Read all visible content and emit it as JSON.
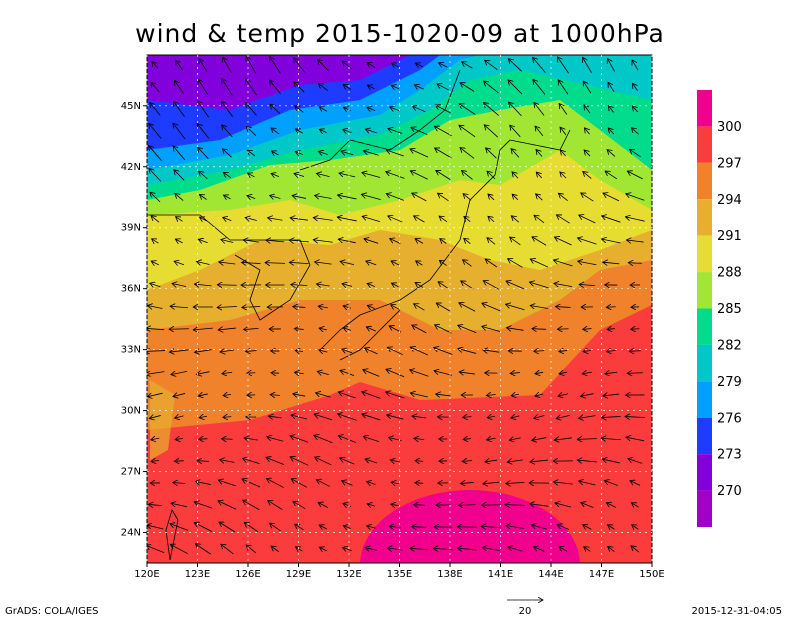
{
  "title": "wind & temp 2015-1020-09 at 1000hPa",
  "lonlim": [
    120,
    150
  ],
  "latlim": [
    22.5,
    47.5
  ],
  "lon_ticks": [
    {
      "value": 120,
      "label": "120E"
    },
    {
      "value": 123,
      "label": "123E"
    },
    {
      "value": 126,
      "label": "126E"
    },
    {
      "value": 129,
      "label": "129E"
    },
    {
      "value": 132,
      "label": "132E"
    },
    {
      "value": 135,
      "label": "135E"
    },
    {
      "value": 138,
      "label": "138E"
    },
    {
      "value": 141,
      "label": "141E"
    },
    {
      "value": 144,
      "label": "144E"
    },
    {
      "value": 147,
      "label": "147E"
    },
    {
      "value": 150,
      "label": "150E"
    }
  ],
  "lat_ticks": [
    {
      "value": 24,
      "label": "24N"
    },
    {
      "value": 27,
      "label": "27N"
    },
    {
      "value": 30,
      "label": "30N"
    },
    {
      "value": 33,
      "label": "33N"
    },
    {
      "value": 36,
      "label": "36N"
    },
    {
      "value": 39,
      "label": "39N"
    },
    {
      "value": 42,
      "label": "42N"
    },
    {
      "value": 45,
      "label": "45N"
    }
  ],
  "colorbar": {
    "labels": [
      300,
      297,
      294,
      291,
      288,
      285,
      282,
      279,
      276,
      273,
      270
    ],
    "colors": [
      "#f0008c",
      "#fa3c3c",
      "#f0822c",
      "#e6af2d",
      "#e6dc32",
      "#a0e632",
      "#00dc8c",
      "#00c8c8",
      "#00a0ff",
      "#1e3cff",
      "#8200dc",
      "#a000c8"
    ]
  },
  "vector_reference": "20",
  "footer_left": "GrADS: COLA/IGES",
  "footer_right": "2015-12-31-04:05"
}
